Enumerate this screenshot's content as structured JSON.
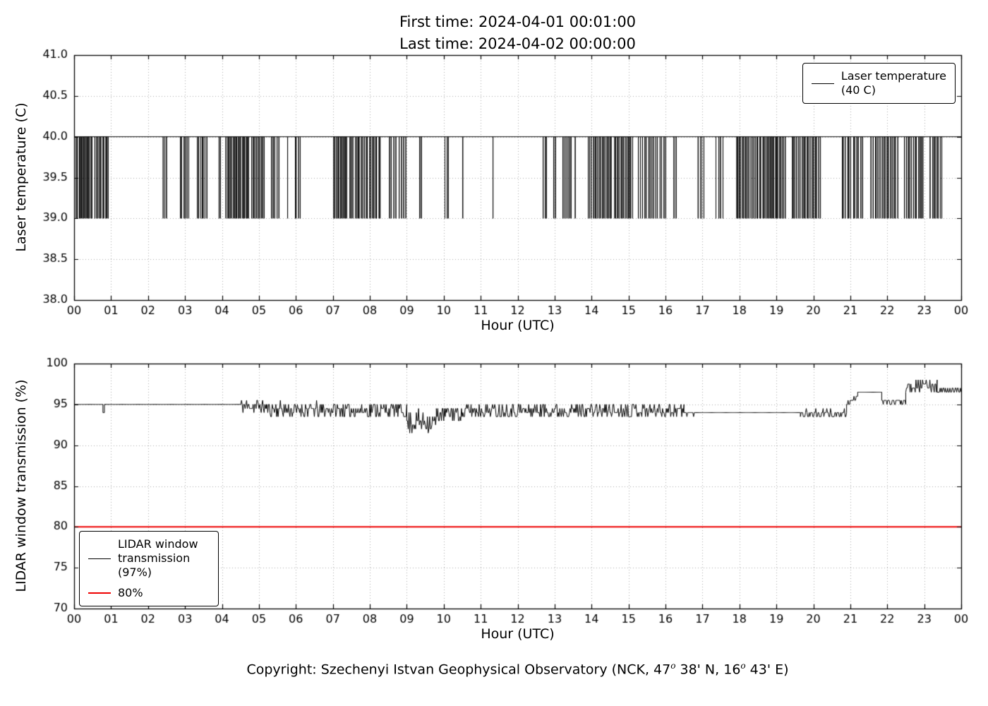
{
  "figure": {
    "title_line1": "First time: 2024-04-01 00:01:00",
    "title_line2": "Last time: 2024-04-02 00:00:00",
    "copyright": {
      "pre": "Copyright: Szechenyi Istvan Geophysical Observatory (NCK, 47",
      "sup1": "o",
      "mid": " 38' N, 16",
      "sup2": "o",
      "post": " 43' E)"
    }
  },
  "chart_data": [
    {
      "type": "line",
      "title": "",
      "xlabel": "Hour (UTC)",
      "ylabel": "Laser temperature (C)",
      "xlim": [
        0,
        24
      ],
      "ylim": [
        38.0,
        41.0
      ],
      "xticks": [
        0,
        1,
        2,
        3,
        4,
        5,
        6,
        7,
        8,
        9,
        10,
        11,
        12,
        13,
        14,
        15,
        16,
        17,
        18,
        19,
        20,
        21,
        22,
        23,
        24
      ],
      "xtick_labels": [
        "00",
        "01",
        "02",
        "03",
        "04",
        "05",
        "06",
        "07",
        "08",
        "09",
        "10",
        "11",
        "12",
        "13",
        "14",
        "15",
        "16",
        "17",
        "18",
        "19",
        "20",
        "21",
        "22",
        "23",
        "00"
      ],
      "yticks": [
        38.0,
        38.5,
        39.0,
        39.5,
        40.0,
        40.5,
        41.0
      ],
      "ytick_labels": [
        "38.0",
        "38.5",
        "39.0",
        "39.5",
        "40.0",
        "40.5",
        "41.0"
      ],
      "grid": true,
      "legend": {
        "position": "upper right",
        "entries": [
          {
            "label_lines": [
              "Laser temperature",
              "(40 C)"
            ],
            "color": "#000000",
            "linewidth": 1.5
          }
        ]
      },
      "series": [
        {
          "name": "Laser temperature",
          "color": "#000000",
          "baseline": 40.0,
          "dip_value": 39.0,
          "x_start": 0.0167,
          "x_end": 24.0,
          "dip_clusters": [
            {
              "start": 0.05,
              "end": 0.5,
              "count": 14
            },
            {
              "start": 0.55,
              "end": 0.95,
              "count": 10
            },
            {
              "start": 2.4,
              "end": 2.52,
              "count": 3
            },
            {
              "start": 2.85,
              "end": 3.12,
              "count": 6
            },
            {
              "start": 3.3,
              "end": 3.62,
              "count": 7
            },
            {
              "start": 3.9,
              "end": 4.0,
              "count": 2
            },
            {
              "start": 4.1,
              "end": 4.75,
              "count": 18
            },
            {
              "start": 4.78,
              "end": 5.15,
              "count": 10
            },
            {
              "start": 5.3,
              "end": 5.55,
              "count": 5
            },
            {
              "start": 5.75,
              "end": 5.8,
              "count": 1
            },
            {
              "start": 5.95,
              "end": 6.15,
              "count": 4
            },
            {
              "start": 7.0,
              "end": 7.4,
              "count": 11
            },
            {
              "start": 7.45,
              "end": 8.3,
              "count": 20
            },
            {
              "start": 8.5,
              "end": 9.0,
              "count": 8
            },
            {
              "start": 9.3,
              "end": 9.42,
              "count": 2
            },
            {
              "start": 10.0,
              "end": 10.15,
              "count": 3
            },
            {
              "start": 10.5,
              "end": 10.55,
              "count": 1
            },
            {
              "start": 11.3,
              "end": 11.36,
              "count": 1
            },
            {
              "start": 12.65,
              "end": 12.82,
              "count": 3
            },
            {
              "start": 12.95,
              "end": 13.05,
              "count": 2
            },
            {
              "start": 13.2,
              "end": 13.48,
              "count": 6
            },
            {
              "start": 13.55,
              "end": 13.6,
              "count": 1
            },
            {
              "start": 13.9,
              "end": 14.55,
              "count": 16
            },
            {
              "start": 14.6,
              "end": 15.12,
              "count": 14
            },
            {
              "start": 15.25,
              "end": 16.02,
              "count": 15
            },
            {
              "start": 16.2,
              "end": 16.32,
              "count": 2
            },
            {
              "start": 16.85,
              "end": 17.06,
              "count": 4
            },
            {
              "start": 17.35,
              "end": 17.58,
              "count": 4
            },
            {
              "start": 17.9,
              "end": 18.6,
              "count": 18
            },
            {
              "start": 18.62,
              "end": 19.25,
              "count": 17
            },
            {
              "start": 19.4,
              "end": 20.2,
              "count": 18
            },
            {
              "start": 20.75,
              "end": 21.35,
              "count": 12
            },
            {
              "start": 21.55,
              "end": 22.3,
              "count": 16
            },
            {
              "start": 22.45,
              "end": 23.0,
              "count": 12
            },
            {
              "start": 23.15,
              "end": 23.5,
              "count": 8
            }
          ]
        }
      ]
    },
    {
      "type": "line",
      "title": "",
      "xlabel": "Hour (UTC)",
      "ylabel": "LIDAR window transmission (%)",
      "xlim": [
        0,
        24
      ],
      "ylim": [
        70,
        100
      ],
      "xticks": [
        0,
        1,
        2,
        3,
        4,
        5,
        6,
        7,
        8,
        9,
        10,
        11,
        12,
        13,
        14,
        15,
        16,
        17,
        18,
        19,
        20,
        21,
        22,
        23,
        24
      ],
      "xtick_labels": [
        "00",
        "01",
        "02",
        "03",
        "04",
        "05",
        "06",
        "07",
        "08",
        "09",
        "10",
        "11",
        "12",
        "13",
        "14",
        "15",
        "16",
        "17",
        "18",
        "19",
        "20",
        "21",
        "22",
        "23",
        "00"
      ],
      "yticks": [
        70,
        75,
        80,
        85,
        90,
        95,
        100
      ],
      "ytick_labels": [
        "70",
        "75",
        "80",
        "85",
        "90",
        "95",
        "100"
      ],
      "grid": true,
      "legend": {
        "position": "lower left",
        "entries": [
          {
            "label_lines": [
              "LIDAR window",
              "transmission",
              "(97%)"
            ],
            "color": "#000000",
            "linewidth": 1.5
          },
          {
            "label_lines": [
              "80%"
            ],
            "color": "#ee0000",
            "linewidth": 2.5
          }
        ]
      },
      "series": [
        {
          "name": "LIDAR window transmission",
          "color": "#000000",
          "quantize": 0.5,
          "sample_step_hours": 0.02,
          "segments": [
            {
              "t0": 0.02,
              "t1": 0.78,
              "y0": 95,
              "y1": 95,
              "noise": 0
            },
            {
              "t0": 0.78,
              "t1": 0.82,
              "y0": 94,
              "y1": 94,
              "noise": 0
            },
            {
              "t0": 0.82,
              "t1": 4.45,
              "y0": 95,
              "y1": 95,
              "noise": 0
            },
            {
              "t0": 4.45,
              "t1": 5.2,
              "y0": 94.8,
              "y1": 94.8,
              "noise": 0.8
            },
            {
              "t0": 5.2,
              "t1": 9.0,
              "y0": 94.4,
              "y1": 94.3,
              "noise": 0.9
            },
            {
              "t0": 9.0,
              "t1": 9.8,
              "y0": 92.9,
              "y1": 92.9,
              "noise": 1.4
            },
            {
              "t0": 9.8,
              "t1": 10.6,
              "y0": 93.9,
              "y1": 93.9,
              "noise": 0.9
            },
            {
              "t0": 10.6,
              "t1": 16.5,
              "y0": 94.3,
              "y1": 94.3,
              "noise": 0.9
            },
            {
              "t0": 16.5,
              "t1": 17.0,
              "y0": 94.0,
              "y1": 94.0,
              "noise": 0.3
            },
            {
              "t0": 17.0,
              "t1": 19.65,
              "y0": 94,
              "y1": 94,
              "noise": 0
            },
            {
              "t0": 19.65,
              "t1": 20.9,
              "y0": 93.8,
              "y1": 93.8,
              "noise": 0.5
            },
            {
              "t0": 20.9,
              "t1": 21.2,
              "y0": 95,
              "y1": 96,
              "noise": 0.3
            },
            {
              "t0": 21.2,
              "t1": 21.85,
              "y0": 96.5,
              "y1": 96.5,
              "noise": 0.2
            },
            {
              "t0": 21.85,
              "t1": 22.5,
              "y0": 95.3,
              "y1": 95.3,
              "noise": 0.4
            },
            {
              "t0": 22.5,
              "t1": 23.35,
              "y0": 97.3,
              "y1": 97.3,
              "noise": 0.7
            },
            {
              "t0": 23.35,
              "t1": 24.0,
              "y0": 96.7,
              "y1": 96.7,
              "noise": 0.4
            }
          ]
        },
        {
          "name": "80% threshold",
          "color": "#ee0000",
          "constant": 80,
          "linewidth": 2
        }
      ]
    }
  ]
}
